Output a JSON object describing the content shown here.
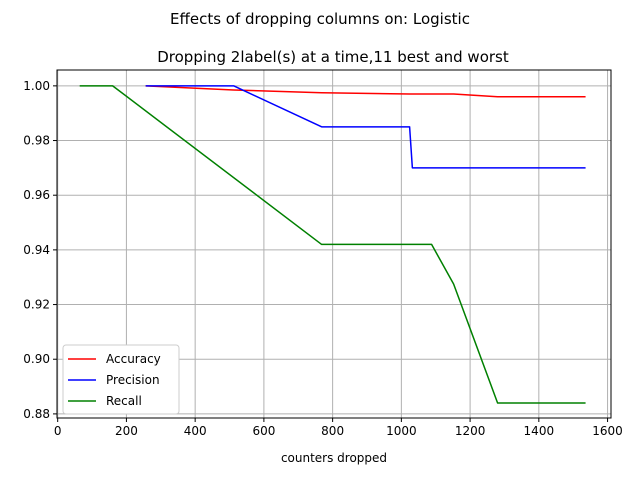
{
  "chart_data": {
    "type": "line",
    "suptitle": "Effects of dropping columns on: Logistic",
    "title": "Dropping 2label(s) at a time,11 best and worst",
    "xlabel": "counters dropped",
    "ylabel": "",
    "xlim": [
      -2,
      1610
    ],
    "ylim": [
      0.8785,
      1.0058
    ],
    "xticks": [
      0,
      200,
      400,
      600,
      800,
      1000,
      1200,
      1400,
      1600
    ],
    "yticks": [
      0.88,
      0.9,
      0.92,
      0.94,
      0.96,
      0.98,
      1.0
    ],
    "ytick_labels": [
      "0.88",
      "0.90",
      "0.92",
      "0.94",
      "0.96",
      "0.98",
      "1.00"
    ],
    "grid": true,
    "legend_position": "lower-left",
    "series": [
      {
        "name": "Accuracy",
        "color": "#ff0000",
        "points": [
          [
            256,
            1.0
          ],
          [
            512,
            0.9985
          ],
          [
            768,
            0.9975
          ],
          [
            1024,
            0.997
          ],
          [
            1152,
            0.997
          ],
          [
            1280,
            0.996
          ],
          [
            1536,
            0.996
          ]
        ]
      },
      {
        "name": "Precision",
        "color": "#0000ff",
        "points": [
          [
            256,
            1.0
          ],
          [
            512,
            1.0
          ],
          [
            768,
            0.985
          ],
          [
            1024,
            0.985
          ],
          [
            1032,
            0.97
          ],
          [
            1536,
            0.97
          ]
        ]
      },
      {
        "name": "Recall",
        "color": "#008000",
        "points": [
          [
            64,
            1.0
          ],
          [
            160,
            1.0
          ],
          [
            768,
            0.942
          ],
          [
            1088,
            0.942
          ],
          [
            1152,
            0.9275
          ],
          [
            1280,
            0.884
          ],
          [
            1536,
            0.884
          ]
        ]
      }
    ]
  }
}
